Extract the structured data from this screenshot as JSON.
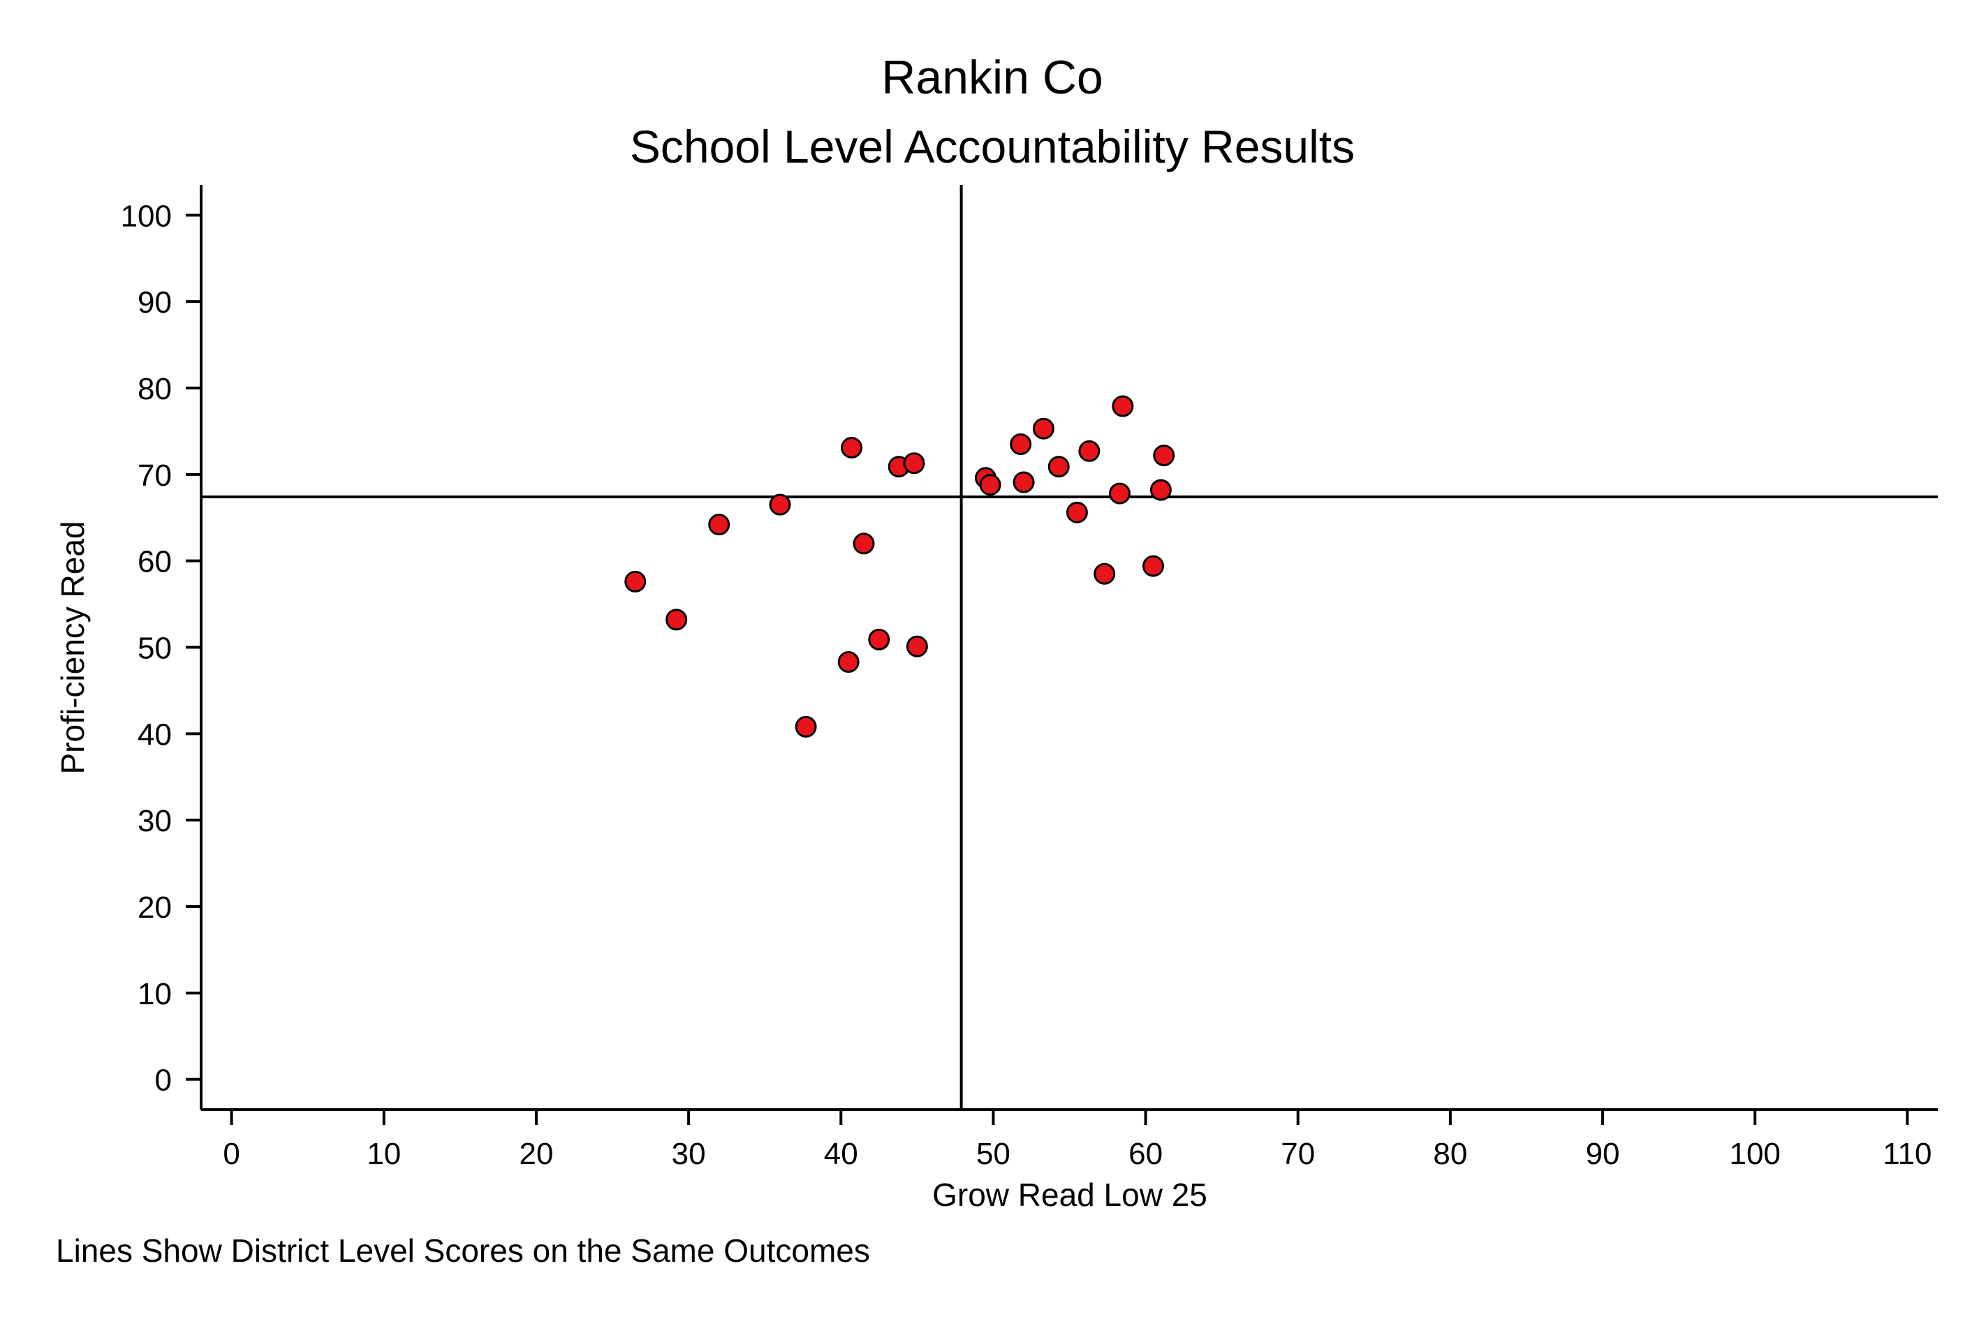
{
  "chart_data": {
    "type": "scatter",
    "title": "Rankin Co",
    "subtitle": "School Level Accountability Results",
    "xlabel": "Grow Read Low 25",
    "ylabel": "Profi-ciency Read",
    "note": "Lines Show District Level Scores on the Same Outcomes",
    "xlim": [
      -2,
      112
    ],
    "ylim": [
      -3.5,
      103.5
    ],
    "x_ticks": [
      0,
      10,
      20,
      30,
      40,
      50,
      60,
      70,
      80,
      90,
      100,
      110
    ],
    "y_ticks": [
      0,
      10,
      20,
      30,
      40,
      50,
      60,
      70,
      80,
      90,
      100
    ],
    "x_tick_labels": [
      "0",
      "10",
      "20",
      "30",
      "40",
      "50",
      "60",
      "70",
      "80",
      "90",
      "100",
      "110"
    ],
    "y_tick_labels": [
      "0",
      "10",
      "20",
      "30",
      "40",
      "50",
      "60",
      "70",
      "80",
      "90",
      "100"
    ],
    "reference_lines": {
      "x": 47.9,
      "y": 67.4
    },
    "grid": false,
    "legend": "none",
    "marker_color": "#e8141c",
    "marker_edge_color": "#000000",
    "points": [
      {
        "x": 26.5,
        "y": 57.6
      },
      {
        "x": 29.2,
        "y": 53.2
      },
      {
        "x": 32.0,
        "y": 64.2
      },
      {
        "x": 36.0,
        "y": 66.5
      },
      {
        "x": 37.7,
        "y": 40.8
      },
      {
        "x": 40.5,
        "y": 48.3
      },
      {
        "x": 40.7,
        "y": 73.1
      },
      {
        "x": 41.5,
        "y": 62.0
      },
      {
        "x": 42.5,
        "y": 50.9
      },
      {
        "x": 43.8,
        "y": 70.9
      },
      {
        "x": 44.8,
        "y": 71.3
      },
      {
        "x": 45.0,
        "y": 50.1
      },
      {
        "x": 49.5,
        "y": 69.6
      },
      {
        "x": 49.8,
        "y": 68.8
      },
      {
        "x": 51.8,
        "y": 73.5
      },
      {
        "x": 52.0,
        "y": 69.1
      },
      {
        "x": 53.3,
        "y": 75.3
      },
      {
        "x": 54.3,
        "y": 70.9
      },
      {
        "x": 55.5,
        "y": 65.6
      },
      {
        "x": 56.3,
        "y": 72.7
      },
      {
        "x": 57.3,
        "y": 58.5
      },
      {
        "x": 58.3,
        "y": 67.8
      },
      {
        "x": 58.5,
        "y": 77.9
      },
      {
        "x": 60.5,
        "y": 59.4
      },
      {
        "x": 61.0,
        "y": 68.2
      },
      {
        "x": 61.2,
        "y": 72.2
      }
    ]
  }
}
